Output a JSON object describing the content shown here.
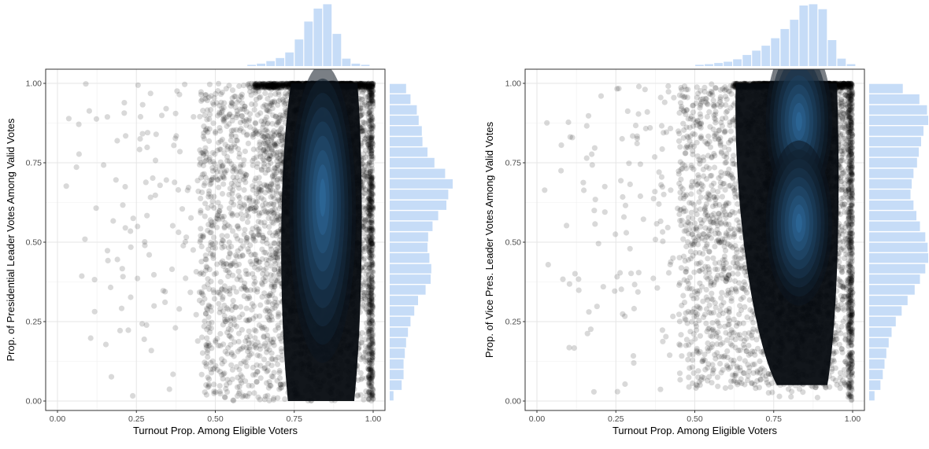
{
  "colors": {
    "points": "#000000",
    "density_outer": "#0c1620",
    "density_inner": "#2f6da1",
    "histogram": "#c6dcf7",
    "grid": "#e6e6e6",
    "panel_border": "#333333"
  },
  "chart_data": [
    {
      "type": "scatter",
      "xlabel": "Turnout Prop. Among Eligible Voters",
      "ylabel": "Prop. of Presidential Leader Votes Among Valid Votes",
      "xlim": [
        0,
        1
      ],
      "ylim": [
        0,
        1
      ],
      "xticks": [
        "0.00",
        "0.25",
        "0.50",
        "0.75",
        "1.00"
      ],
      "yticks": [
        "0.00",
        "0.25",
        "0.50",
        "0.75",
        "1.00"
      ],
      "grid": true,
      "point_alpha": 0.15,
      "density_peaks": [
        {
          "x": 0.84,
          "y": 0.64
        }
      ],
      "marginal_x": {
        "bin_edges": [
          0.6,
          0.63,
          0.66,
          0.69,
          0.72,
          0.75,
          0.78,
          0.81,
          0.84,
          0.87,
          0.9,
          0.93,
          0.96,
          0.99
        ],
        "relative_counts": [
          0.02,
          0.04,
          0.08,
          0.13,
          0.22,
          0.43,
          0.72,
          0.93,
          1.0,
          0.52,
          0.12,
          0.04,
          0.02
        ]
      },
      "marginal_y": {
        "bin_edges": [
          0.0,
          0.033,
          0.067,
          0.1,
          0.133,
          0.167,
          0.2,
          0.233,
          0.267,
          0.3,
          0.333,
          0.367,
          0.4,
          0.433,
          0.467,
          0.5,
          0.533,
          0.567,
          0.6,
          0.633,
          0.667,
          0.7,
          0.733,
          0.767,
          0.8,
          0.833,
          0.867,
          0.9,
          0.933,
          0.967,
          1.0
        ],
        "relative_counts": [
          0.06,
          0.19,
          0.22,
          0.22,
          0.24,
          0.26,
          0.29,
          0.33,
          0.39,
          0.45,
          0.57,
          0.65,
          0.66,
          0.63,
          0.6,
          0.61,
          0.68,
          0.77,
          0.9,
          0.93,
          1.0,
          0.88,
          0.71,
          0.6,
          0.52,
          0.51,
          0.46,
          0.43,
          0.33,
          0.26
        ]
      }
    },
    {
      "type": "scatter",
      "xlabel": "Turnout Prop. Among Eligible Voters",
      "ylabel": "Prop. of Vice Pres. Leader Votes Among Valid Votes",
      "xlim": [
        0,
        1
      ],
      "ylim": [
        0,
        1
      ],
      "xticks": [
        "0.00",
        "0.25",
        "0.50",
        "0.75",
        "1.00"
      ],
      "yticks": [
        "0.00",
        "0.25",
        "0.50",
        "0.75",
        "1.00"
      ],
      "grid": true,
      "point_alpha": 0.15,
      "density_peaks": [
        {
          "x": 0.83,
          "y": 0.88
        },
        {
          "x": 0.83,
          "y": 0.56
        }
      ],
      "marginal_x": {
        "bin_edges": [
          0.5,
          0.53,
          0.56,
          0.59,
          0.62,
          0.65,
          0.68,
          0.71,
          0.74,
          0.77,
          0.8,
          0.83,
          0.86,
          0.89,
          0.92,
          0.95,
          0.98,
          1.01
        ],
        "relative_counts": [
          0.02,
          0.03,
          0.05,
          0.07,
          0.11,
          0.18,
          0.25,
          0.33,
          0.45,
          0.6,
          0.75,
          0.98,
          1.0,
          0.92,
          0.42,
          0.12,
          0.03
        ]
      },
      "marginal_y": {
        "bin_edges": [
          0.0,
          0.033,
          0.067,
          0.1,
          0.133,
          0.167,
          0.2,
          0.233,
          0.267,
          0.3,
          0.333,
          0.367,
          0.4,
          0.433,
          0.467,
          0.5,
          0.533,
          0.567,
          0.6,
          0.633,
          0.667,
          0.7,
          0.733,
          0.767,
          0.8,
          0.833,
          0.867,
          0.9,
          0.933,
          0.967,
          1.0
        ],
        "relative_counts": [
          0.09,
          0.19,
          0.23,
          0.26,
          0.29,
          0.33,
          0.38,
          0.45,
          0.55,
          0.65,
          0.77,
          0.86,
          0.95,
          1.0,
          0.99,
          0.95,
          0.86,
          0.8,
          0.75,
          0.7,
          0.72,
          0.75,
          0.81,
          0.84,
          0.88,
          0.92,
          1.0,
          0.98,
          0.85,
          0.57
        ]
      }
    }
  ]
}
